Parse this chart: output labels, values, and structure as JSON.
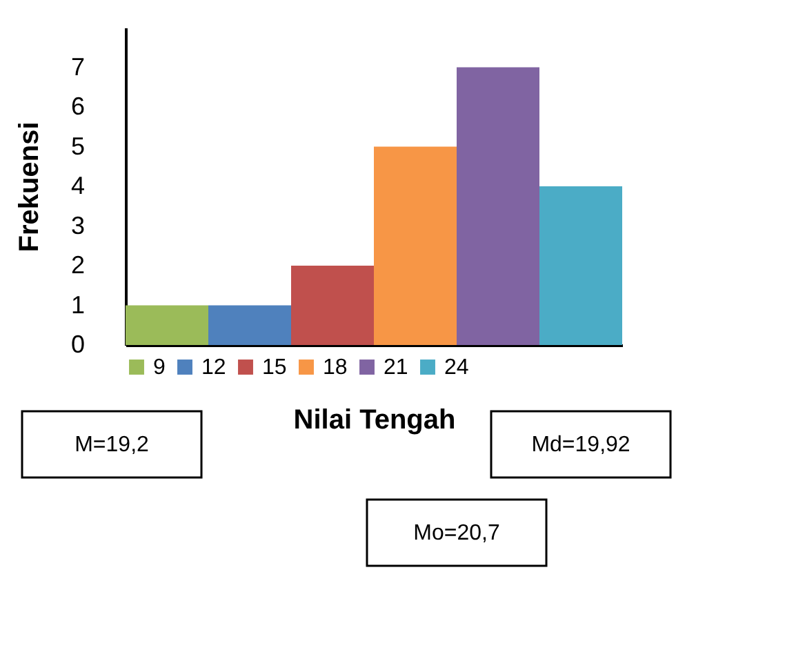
{
  "chart_data": {
    "type": "bar",
    "xlabel": "Nilai Tengah",
    "ylabel": "Frekuensi",
    "categories": [
      null,
      null,
      null,
      null,
      null,
      null
    ],
    "series": [
      {
        "name": "9",
        "color": "#9bbb59",
        "values": [
          1,
          null,
          null,
          null,
          null,
          null
        ]
      },
      {
        "name": "12",
        "color": "#4f81bd",
        "values": [
          null,
          1,
          null,
          null,
          null,
          null
        ]
      },
      {
        "name": "15",
        "color": "#c0504d",
        "values": [
          null,
          null,
          2,
          null,
          null,
          null
        ]
      },
      {
        "name": "18",
        "color": "#f79646",
        "values": [
          null,
          null,
          null,
          5,
          null,
          null
        ]
      },
      {
        "name": "21",
        "color": "#8064a2",
        "values": [
          null,
          null,
          null,
          null,
          7,
          null
        ]
      },
      {
        "name": "24",
        "color": "#4bacc6",
        "values": [
          null,
          null,
          null,
          null,
          null,
          4
        ]
      }
    ],
    "ylim": [
      0,
      8
    ],
    "yticks": [
      0,
      1,
      2,
      3,
      4,
      5,
      6,
      7
    ],
    "grid": false,
    "legend": "bottom",
    "tick_labels": "y",
    "annotations": [
      "M=19,2",
      "Md=19,92",
      "Mo=20,7"
    ]
  }
}
